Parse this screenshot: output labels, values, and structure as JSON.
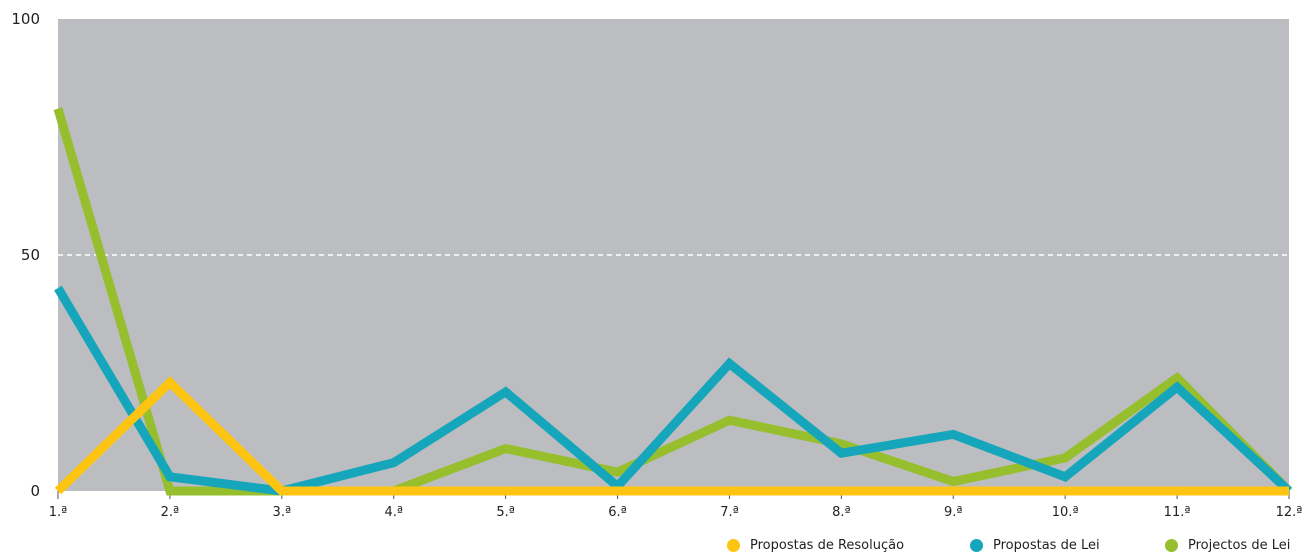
{
  "chart_data": {
    "type": "line",
    "categories": [
      "1.ª",
      "2.ª",
      "3.ª",
      "4.ª",
      "5.ª",
      "6.ª",
      "7.ª",
      "8.ª",
      "9.ª",
      "10.ª",
      "11.ª",
      "12.ª"
    ],
    "ylim": [
      0,
      100
    ],
    "yticks": [
      "0",
      "50",
      "100"
    ],
    "grid": "dashed line at 50",
    "background_color": "#bcbdc1",
    "legend_placement": "bottom-right",
    "series": [
      {
        "name": "Projectos de Lei",
        "color": "#96be2d",
        "values": [
          81,
          0,
          0,
          0,
          9,
          4,
          15,
          10,
          2,
          7,
          24,
          0
        ]
      },
      {
        "name": "Propostas de Lei",
        "color": "#16a6bc",
        "values": [
          43,
          3,
          0,
          6,
          21,
          1,
          27,
          8,
          12,
          3,
          22,
          0
        ]
      },
      {
        "name": "Propostas de Resolução",
        "color": "#fdc512",
        "values": [
          0,
          23,
          0,
          0,
          0,
          0,
          0,
          0,
          0,
          0,
          0,
          0
        ]
      }
    ],
    "legend": [
      "Propostas de Resolução",
      "Propostas de Lei",
      "Projectos de Lei"
    ]
  }
}
